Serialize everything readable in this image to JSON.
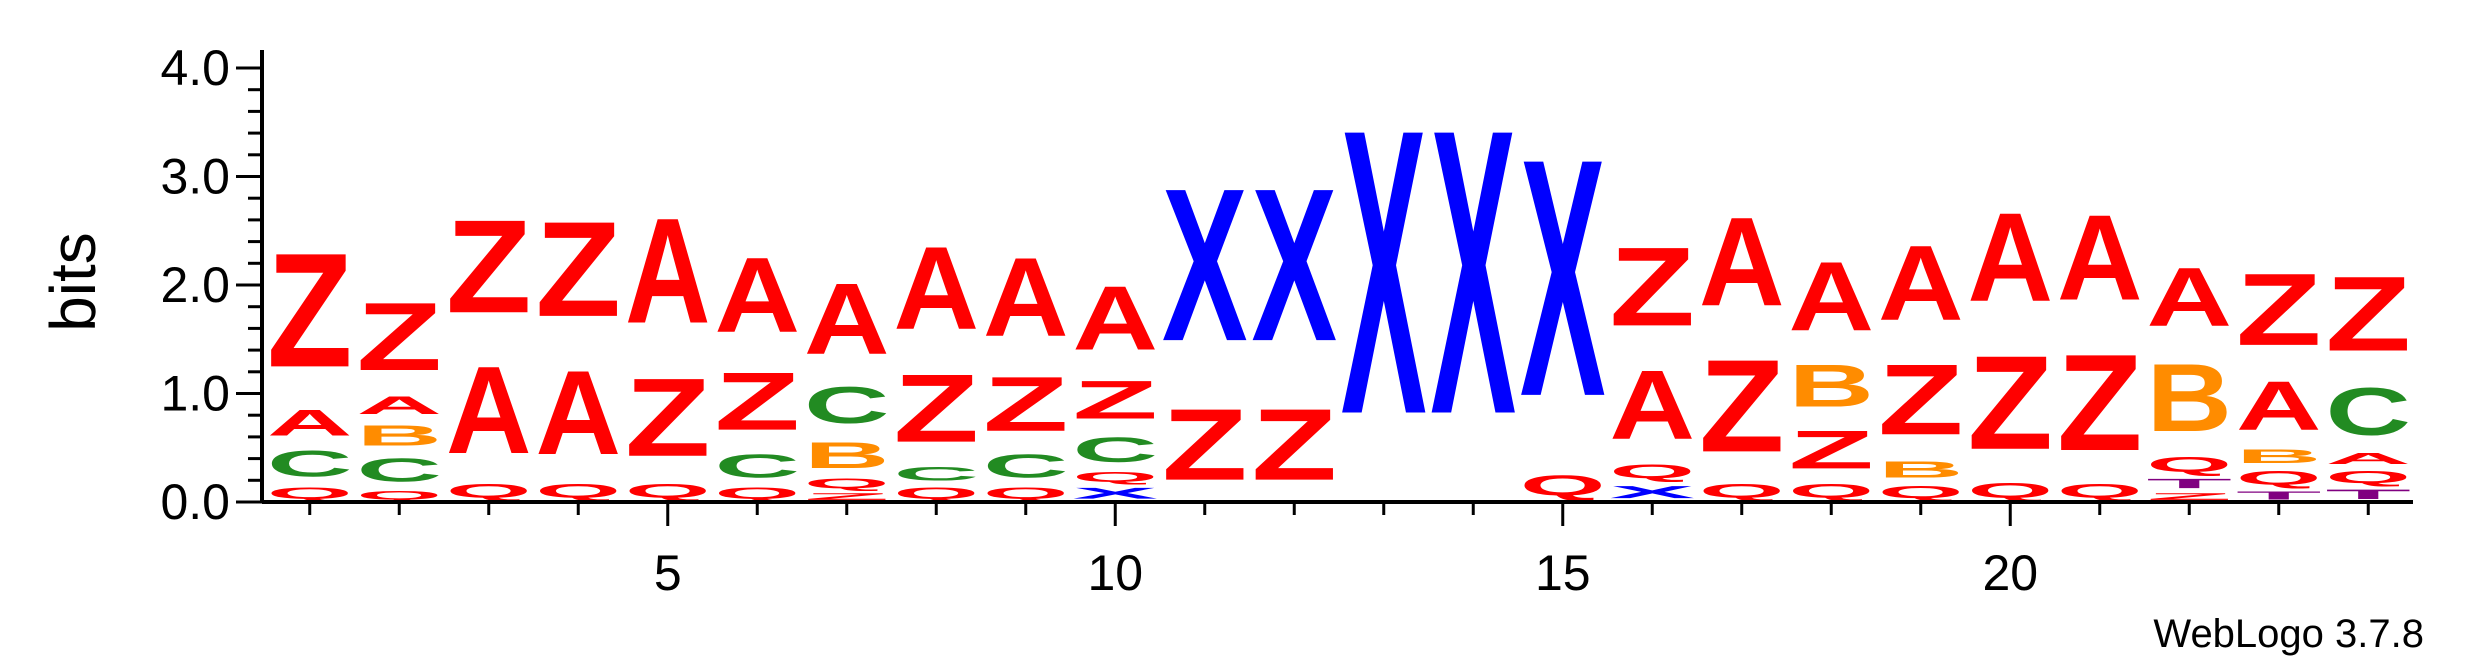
{
  "chart_data": {
    "type": "sequence-logo",
    "ylabel": "bits",
    "ylim": [
      0,
      4.0
    ],
    "y_ticks": [
      "0.0",
      "1.0",
      "2.0",
      "3.0",
      "4.0"
    ],
    "x_ticks": [
      5,
      10,
      15,
      20
    ],
    "credit": "WebLogo 3.7.8",
    "colors": {
      "Z": "#ff0000",
      "A": "#ff0000",
      "Q": "#ff0000",
      "X": "#0000ff",
      "C": "#228b22",
      "B": "#ff8c00",
      "T": "#800080"
    },
    "positions": [
      {
        "pos": 1,
        "stack": [
          [
            "Q",
            0.16
          ],
          [
            "C",
            0.38
          ],
          [
            "A",
            0.38
          ],
          [
            "Z",
            1.68
          ]
        ]
      },
      {
        "pos": 2,
        "stack": [
          [
            "Q",
            0.12
          ],
          [
            "C",
            0.34
          ],
          [
            "B",
            0.3
          ],
          [
            "A",
            0.26
          ],
          [
            "Z",
            1.0
          ]
        ]
      },
      {
        "pos": 3,
        "stack": [
          [
            "Q",
            0.2
          ],
          [
            "A",
            1.28
          ],
          [
            "Z",
            1.37
          ]
        ]
      },
      {
        "pos": 4,
        "stack": [
          [
            "Q",
            0.2
          ],
          [
            "A",
            1.24
          ],
          [
            "Z",
            1.4
          ]
        ]
      },
      {
        "pos": 5,
        "stack": [
          [
            "Q",
            0.2
          ],
          [
            "Z",
            1.15
          ],
          [
            "A",
            1.55
          ]
        ]
      },
      {
        "pos": 6,
        "stack": [
          [
            "Q",
            0.16
          ],
          [
            "C",
            0.34
          ],
          [
            "Z",
            0.85
          ],
          [
            "A",
            1.1
          ]
        ]
      },
      {
        "pos": 7,
        "stack": [
          [
            "Z",
            0.1
          ],
          [
            "Q",
            0.14
          ],
          [
            "B",
            0.38
          ],
          [
            "C",
            0.54
          ],
          [
            "A",
            1.04
          ]
        ]
      },
      {
        "pos": 8,
        "stack": [
          [
            "Q",
            0.16
          ],
          [
            "C",
            0.2
          ],
          [
            "Z",
            1.0
          ],
          [
            "A",
            1.22
          ]
        ]
      },
      {
        "pos": 9,
        "stack": [
          [
            "Q",
            0.16
          ],
          [
            "C",
            0.34
          ],
          [
            "Z",
            0.8
          ],
          [
            "A",
            1.16
          ]
        ]
      },
      {
        "pos": 10,
        "stack": [
          [
            "X",
            0.16
          ],
          [
            "Q",
            0.14
          ],
          [
            "C",
            0.36
          ],
          [
            "Z",
            0.56
          ],
          [
            "A",
            0.94
          ]
        ]
      },
      {
        "pos": 11,
        "stack": [
          [
            "Z",
            1.05
          ],
          [
            "X",
            2.25
          ]
        ]
      },
      {
        "pos": 12,
        "stack": [
          [
            "Z",
            1.05
          ],
          [
            "X",
            2.25
          ]
        ]
      },
      {
        "pos": 13,
        "stack": [
          [
            "X",
            4.2
          ]
        ]
      },
      {
        "pos": 14,
        "stack": [
          [
            "X",
            4.2
          ]
        ]
      },
      {
        "pos": 15,
        "stack": [
          [
            "Q",
            0.3
          ],
          [
            "X",
            3.5
          ]
        ]
      },
      {
        "pos": 16,
        "stack": [
          [
            "X",
            0.18
          ],
          [
            "Q",
            0.2
          ],
          [
            "A",
            1.02
          ],
          [
            "Z",
            1.16
          ]
        ]
      },
      {
        "pos": 17,
        "stack": [
          [
            "Q",
            0.2
          ],
          [
            "Z",
            1.36
          ],
          [
            "A",
            1.3
          ]
        ]
      },
      {
        "pos": 18,
        "stack": [
          [
            "Q",
            0.2
          ],
          [
            "Z",
            0.56
          ],
          [
            "B",
            0.62
          ],
          [
            "A",
            1.02
          ]
        ]
      },
      {
        "pos": 19,
        "stack": [
          [
            "Q",
            0.18
          ],
          [
            "B",
            0.24
          ],
          [
            "Z",
            1.04
          ],
          [
            "A",
            1.1
          ]
        ]
      },
      {
        "pos": 20,
        "stack": [
          [
            "Q",
            0.22
          ],
          [
            "Z",
            1.38
          ],
          [
            "A",
            1.3
          ]
        ]
      },
      {
        "pos": 21,
        "stack": [
          [
            "Q",
            0.2
          ],
          [
            "Z",
            1.42
          ],
          [
            "A",
            1.26
          ]
        ]
      },
      {
        "pos": 22,
        "stack": [
          [
            "Z",
            0.1
          ],
          [
            "T",
            0.14
          ],
          [
            "Q",
            0.22
          ],
          [
            "B",
            1.0
          ],
          [
            "A",
            0.86
          ]
        ]
      },
      {
        "pos": 23,
        "stack": [
          [
            "T",
            0.12
          ],
          [
            "Q",
            0.2
          ],
          [
            "B",
            0.2
          ],
          [
            "A",
            0.72
          ],
          [
            "Z",
            1.06
          ]
        ]
      },
      {
        "pos": 24,
        "stack": [
          [
            "T",
            0.14
          ],
          [
            "Q",
            0.18
          ],
          [
            "A",
            0.16
          ],
          [
            "C",
            0.7
          ],
          [
            "Z",
            1.1
          ]
        ]
      }
    ]
  }
}
